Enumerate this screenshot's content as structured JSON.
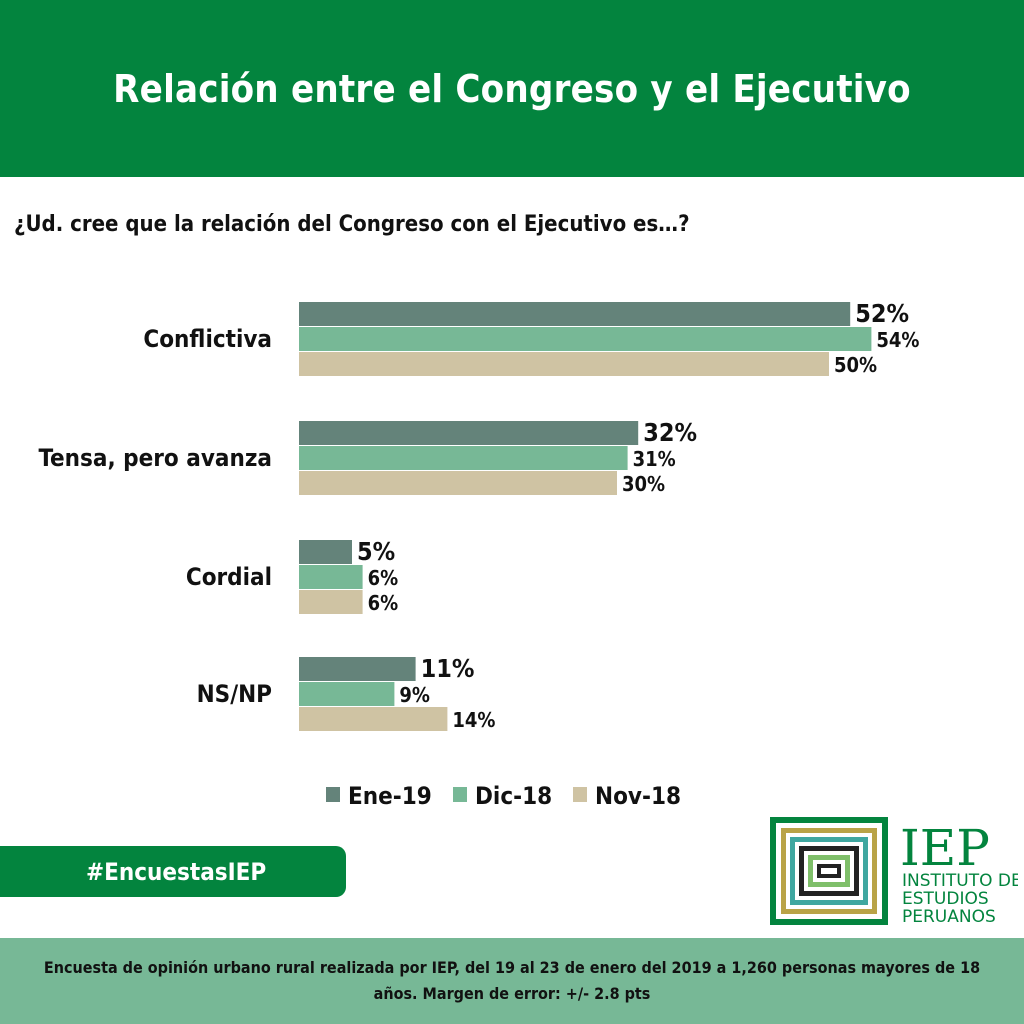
{
  "header": {
    "title": "Relación entre el Congreso y el Ejecutivo"
  },
  "question": "¿Ud. cree que la relación del Congreso con el Ejecutivo es…?",
  "colors": {
    "header_green": "#03843e",
    "footer_green": "#77b896",
    "ene19": "#64837a",
    "dic18": "#77b896",
    "nov18": "#cfc3a3"
  },
  "chart_data": {
    "type": "bar",
    "orientation": "horizontal",
    "categories": [
      "Conflictiva",
      "Tensa, pero avanza",
      "Cordial",
      "NS/NP"
    ],
    "series": [
      {
        "name": "Ene-19",
        "values": [
          52,
          32,
          5,
          11
        ],
        "color": "#64837a"
      },
      {
        "name": "Dic-18",
        "values": [
          54,
          31,
          6,
          9
        ],
        "color": "#77b896"
      },
      {
        "name": "Nov-18",
        "values": [
          50,
          30,
          6,
          14
        ],
        "color": "#cfc3a3"
      }
    ],
    "value_suffix": "%",
    "xlim": [
      0,
      100
    ],
    "grid": false,
    "legend_position": "bottom"
  },
  "hashtag": "#EncuestasIEP",
  "logo": {
    "acronym": "IEP",
    "line1": "INSTITUTO DE",
    "line2": "ESTUDIOS",
    "line3": "PERUANOS"
  },
  "footer": {
    "note": "Encuesta de opinión urbano rural realizada por IEP, del 19 al 23 de enero del 2019 a 1,260 personas mayores de 18 años. Margen de error: +/- 2.8 pts"
  }
}
